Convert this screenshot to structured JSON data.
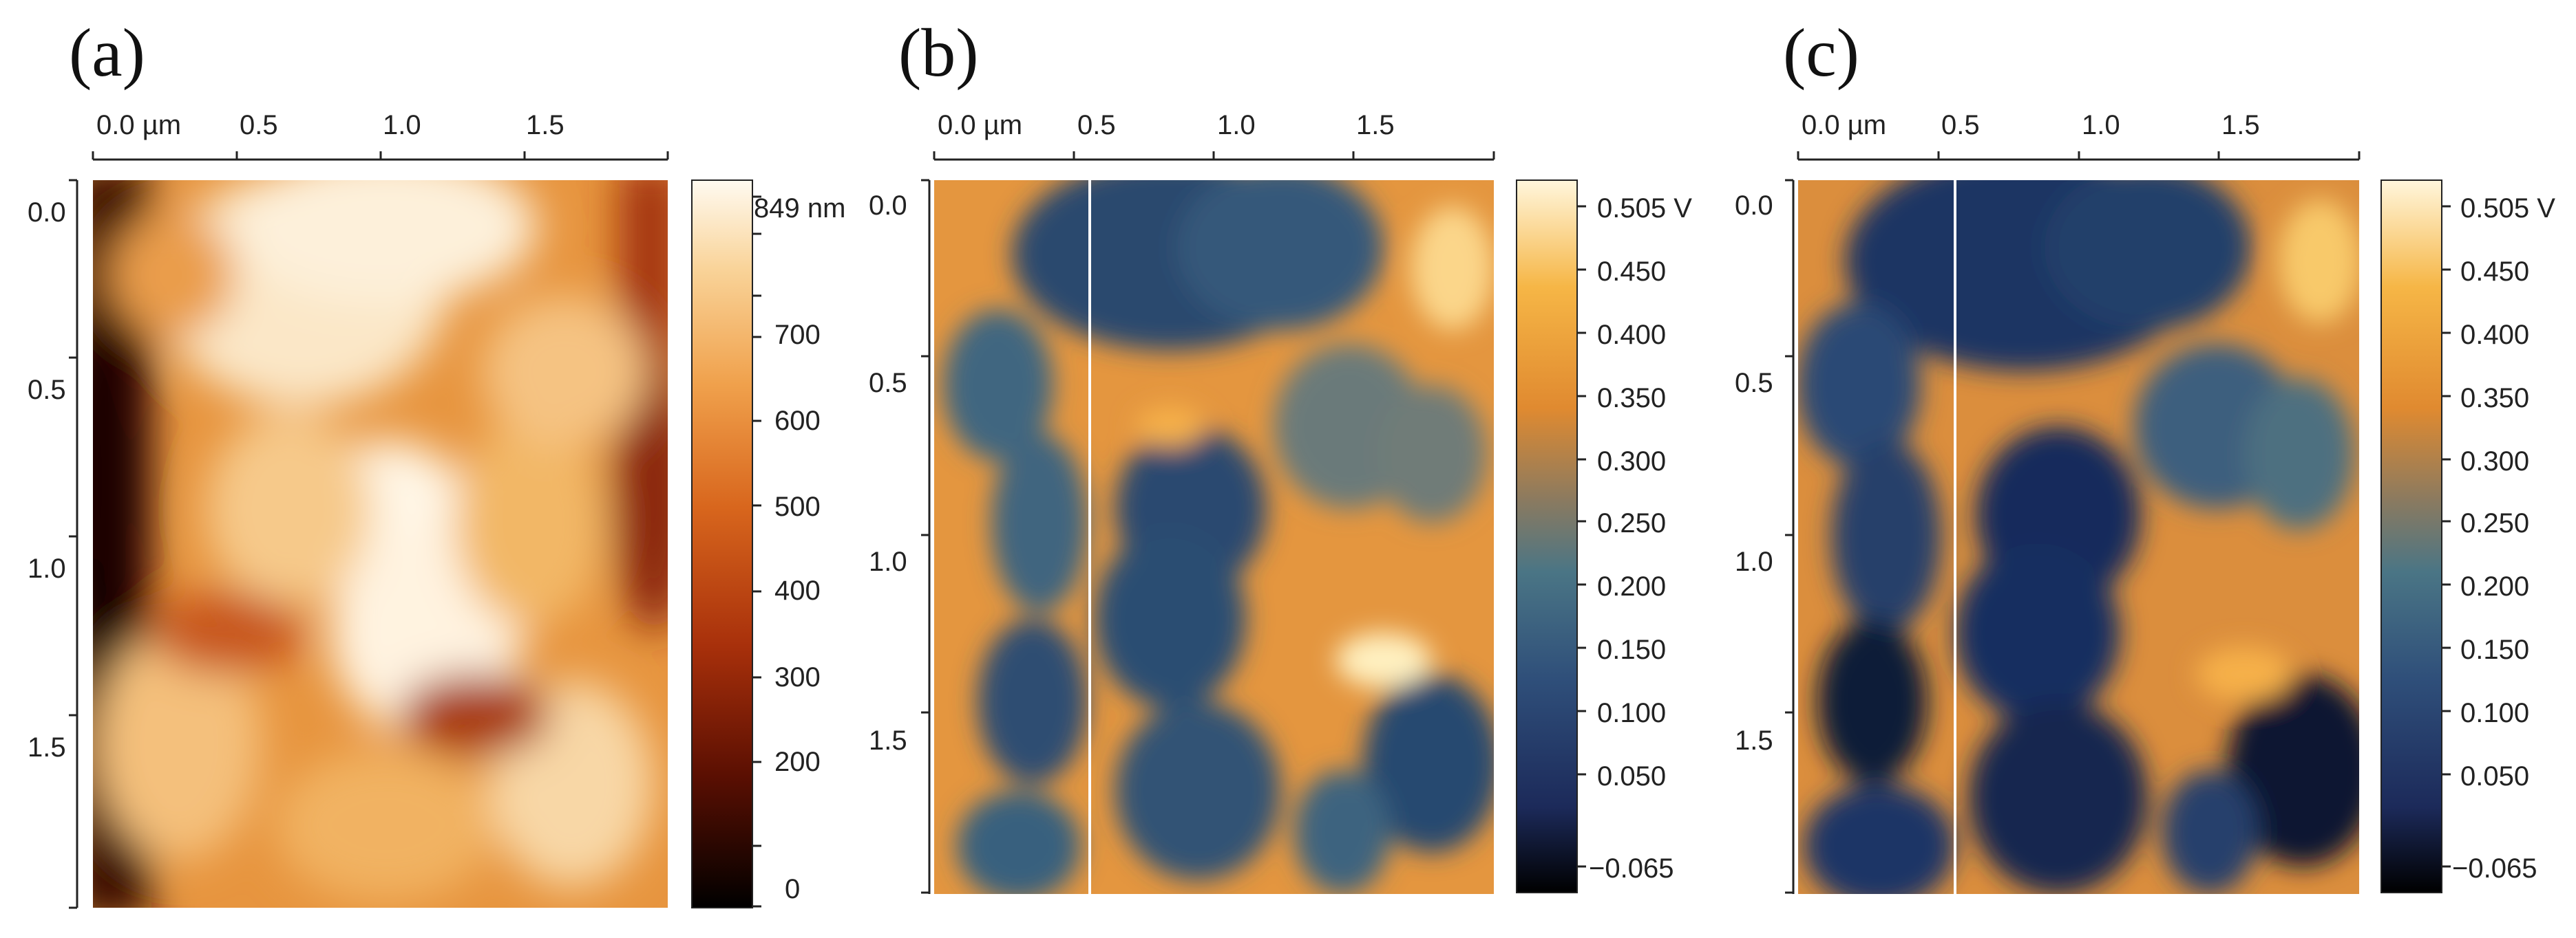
{
  "panels": [
    {
      "label": "(a)",
      "kind": "topography",
      "x_ticks": [
        "0.0 µm",
        "0.5",
        "1.0",
        "1.5"
      ],
      "y_ticks": [
        "0.0",
        "0.5",
        "1.0",
        "1.5"
      ],
      "colorbar": {
        "unit_label": "849 nm",
        "ticks": [
          "700",
          "600",
          "500",
          "400",
          "300",
          "200",
          "0"
        ],
        "min": 0,
        "max": 849,
        "colors": [
          "#000000",
          "#5a0f02",
          "#a8300b",
          "#d8661d",
          "#f0a14c",
          "#f9d49a",
          "#fffaf0"
        ]
      },
      "has_cursor_line": false
    },
    {
      "label": "(b)",
      "kind": "surface-potential",
      "x_ticks": [
        "0.0 µm",
        "0.5",
        "1.0",
        "1.5"
      ],
      "y_ticks": [
        "0.0",
        "0.5",
        "1.0",
        "1.5"
      ],
      "colorbar": {
        "unit_label": "0.505 V",
        "ticks": [
          "0.450",
          "0.400",
          "0.350",
          "0.300",
          "0.250",
          "0.200",
          "0.150",
          "0.100",
          "0.050",
          "−0.065"
        ],
        "min": -0.065,
        "max": 0.505,
        "colors": [
          "#000000",
          "#1c2a5a",
          "#2f4f7a",
          "#4a7585",
          "#8a7a60",
          "#e08a30",
          "#f6b646",
          "#fff6dc"
        ]
      },
      "has_cursor_line": true
    },
    {
      "label": "(c)",
      "kind": "surface-potential",
      "x_ticks": [
        "0.0 µm",
        "0.5",
        "1.0",
        "1.5"
      ],
      "y_ticks": [
        "0.0",
        "0.5",
        "1.0",
        "1.5"
      ],
      "colorbar": {
        "unit_label": "0.505 V",
        "ticks": [
          "0.450",
          "0.400",
          "0.350",
          "0.300",
          "0.250",
          "0.200",
          "0.150",
          "0.100",
          "0.050",
          "−0.065"
        ],
        "min": -0.065,
        "max": 0.505,
        "colors": [
          "#000000",
          "#1c2a5a",
          "#2f4f7a",
          "#4a7585",
          "#8a7a60",
          "#e08a30",
          "#f6b646",
          "#fff6dc"
        ]
      },
      "has_cursor_line": true
    }
  ]
}
